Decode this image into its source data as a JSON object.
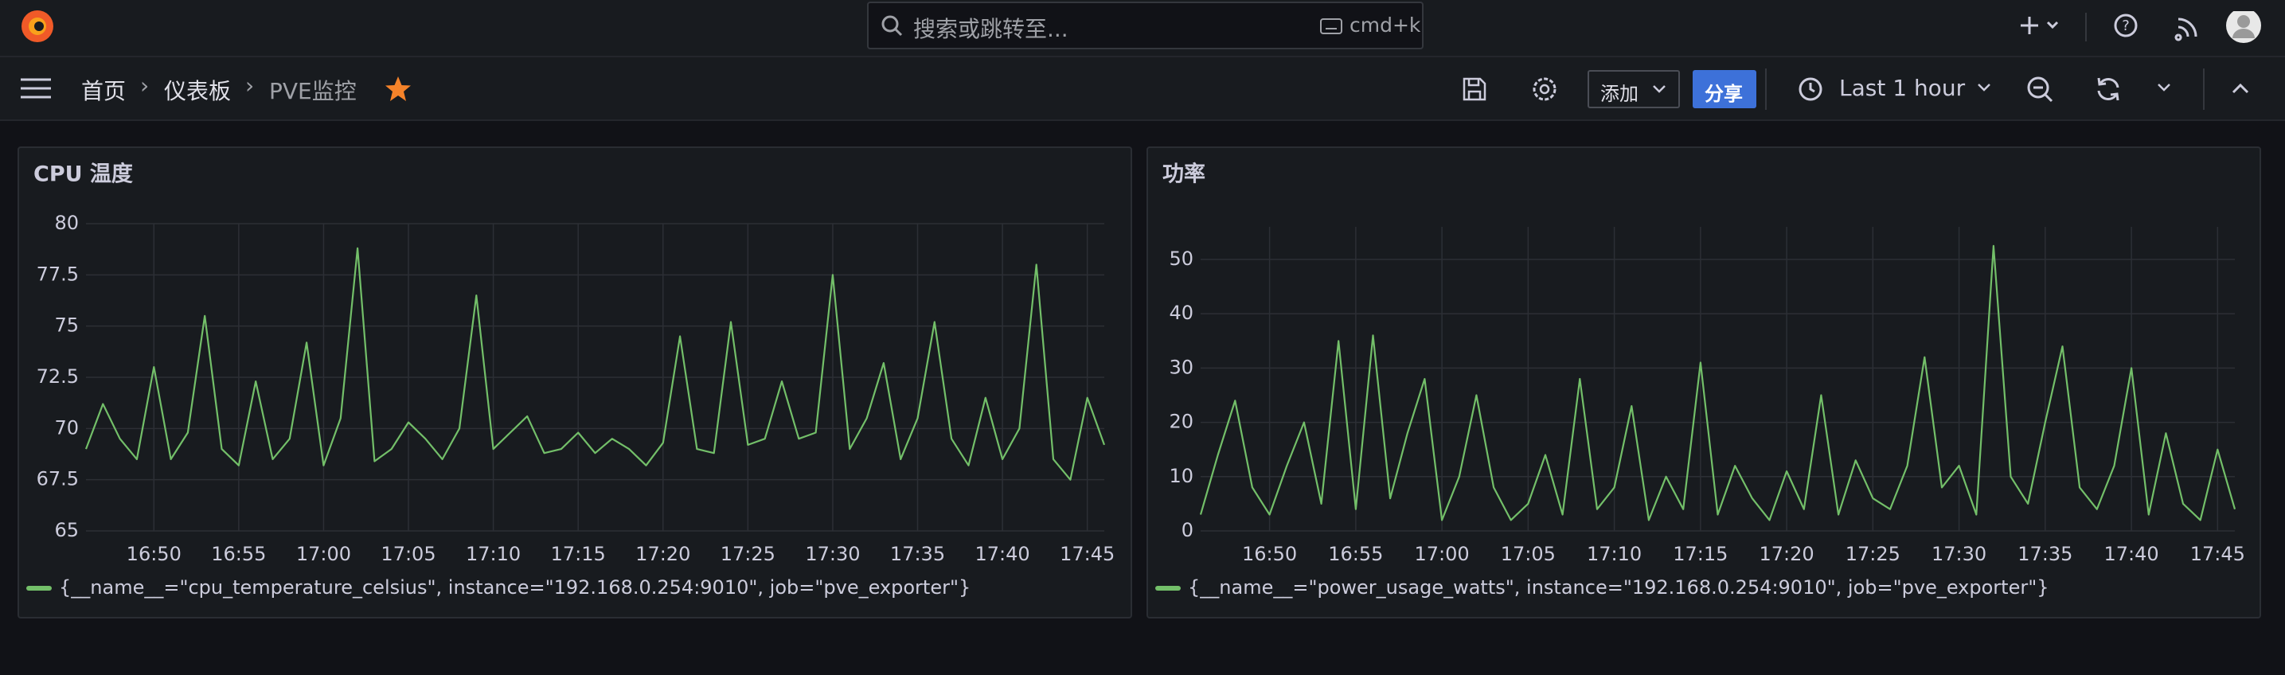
{
  "nav": {
    "search_placeholder": "搜索或跳转至...",
    "search_shortcut": "cmd+k",
    "breadcrumbs": [
      "首页",
      "仪表板",
      "PVE监控"
    ],
    "add_button": "添加",
    "share_button": "分享",
    "time_range": "Last 1 hour"
  },
  "chart_data": [
    {
      "type": "line",
      "title": "CPU 温度",
      "x": [
        "16:46",
        "16:47",
        "16:48",
        "16:49",
        "16:50",
        "16:51",
        "16:52",
        "16:53",
        "16:54",
        "16:55",
        "16:56",
        "16:57",
        "16:58",
        "16:59",
        "17:00",
        "17:01",
        "17:02",
        "17:03",
        "17:04",
        "17:05",
        "17:06",
        "17:07",
        "17:08",
        "17:09",
        "17:10",
        "17:11",
        "17:12",
        "17:13",
        "17:14",
        "17:15",
        "17:16",
        "17:17",
        "17:18",
        "17:19",
        "17:20",
        "17:21",
        "17:22",
        "17:23",
        "17:24",
        "17:25",
        "17:26",
        "17:27",
        "17:28",
        "17:29",
        "17:30",
        "17:31",
        "17:32",
        "17:33",
        "17:34",
        "17:35",
        "17:36",
        "17:37",
        "17:38",
        "17:39",
        "17:40",
        "17:41",
        "17:42",
        "17:43",
        "17:44",
        "17:45",
        "17:46"
      ],
      "xlim": [
        "16:46",
        "17:46"
      ],
      "xticks": [
        "16:50",
        "16:55",
        "17:00",
        "17:05",
        "17:10",
        "17:15",
        "17:20",
        "17:25",
        "17:30",
        "17:35",
        "17:40",
        "17:45"
      ],
      "ylim": [
        65,
        80
      ],
      "yticks": [
        65,
        67.5,
        70,
        72.5,
        75,
        77.5,
        80
      ],
      "grid": true,
      "legend": "bottom-left",
      "series": [
        {
          "name": "{__name__=\"cpu_temperature_celsius\", instance=\"192.168.0.254:9010\", job=\"pve_exporter\"}",
          "color": "#73bf69",
          "values": [
            69,
            71.2,
            69.5,
            68.5,
            73,
            68.5,
            69.8,
            75.5,
            69,
            68.2,
            72.3,
            68.5,
            69.5,
            74.2,
            68.2,
            70.5,
            78.8,
            68.4,
            69,
            70.3,
            69.5,
            68.5,
            70,
            76.5,
            69,
            69.8,
            70.6,
            68.8,
            69,
            69.8,
            68.8,
            69.5,
            69,
            68.2,
            69.3,
            74.5,
            69,
            68.8,
            75.2,
            69.2,
            69.5,
            72.3,
            69.5,
            69.8,
            77.5,
            69,
            70.5,
            73.2,
            68.5,
            70.5,
            75.2,
            69.5,
            68.2,
            71.5,
            68.5,
            70,
            78,
            68.5,
            67.5,
            71.5,
            69.2
          ]
        }
      ]
    },
    {
      "type": "line",
      "title": "功率",
      "x": [
        "16:46",
        "16:47",
        "16:48",
        "16:49",
        "16:50",
        "16:51",
        "16:52",
        "16:53",
        "16:54",
        "16:55",
        "16:56",
        "16:57",
        "16:58",
        "16:59",
        "17:00",
        "17:01",
        "17:02",
        "17:03",
        "17:04",
        "17:05",
        "17:06",
        "17:07",
        "17:08",
        "17:09",
        "17:10",
        "17:11",
        "17:12",
        "17:13",
        "17:14",
        "17:15",
        "17:16",
        "17:17",
        "17:18",
        "17:19",
        "17:20",
        "17:21",
        "17:22",
        "17:23",
        "17:24",
        "17:25",
        "17:26",
        "17:27",
        "17:28",
        "17:29",
        "17:30",
        "17:31",
        "17:32",
        "17:33",
        "17:34",
        "17:35",
        "17:36",
        "17:37",
        "17:38",
        "17:39",
        "17:40",
        "17:41",
        "17:42",
        "17:43",
        "17:44",
        "17:45",
        "17:46"
      ],
      "xlim": [
        "16:46",
        "17:46"
      ],
      "xticks": [
        "16:50",
        "16:55",
        "17:00",
        "17:05",
        "17:10",
        "17:15",
        "17:20",
        "17:25",
        "17:30",
        "17:35",
        "17:40",
        "17:45"
      ],
      "ylim": [
        0,
        56
      ],
      "yticks": [
        0,
        10,
        20,
        30,
        40,
        50
      ],
      "grid": true,
      "legend": "bottom-left",
      "series": [
        {
          "name": "{__name__=\"power_usage_watts\", instance=\"192.168.0.254:9010\", job=\"pve_exporter\"}",
          "color": "#73bf69",
          "values": [
            3,
            14,
            24,
            8,
            3,
            12,
            20,
            5,
            35,
            4,
            36,
            6,
            18,
            28,
            2,
            10,
            25,
            8,
            2,
            5,
            14,
            3,
            28,
            4,
            8,
            23,
            2,
            10,
            4,
            31,
            3,
            12,
            6,
            2,
            11,
            4,
            25,
            3,
            13,
            6,
            4,
            12,
            32,
            8,
            12,
            3,
            52.5,
            10,
            5,
            20,
            34,
            8,
            4,
            12,
            30,
            3,
            18,
            5,
            2,
            15,
            4
          ]
        }
      ]
    }
  ]
}
